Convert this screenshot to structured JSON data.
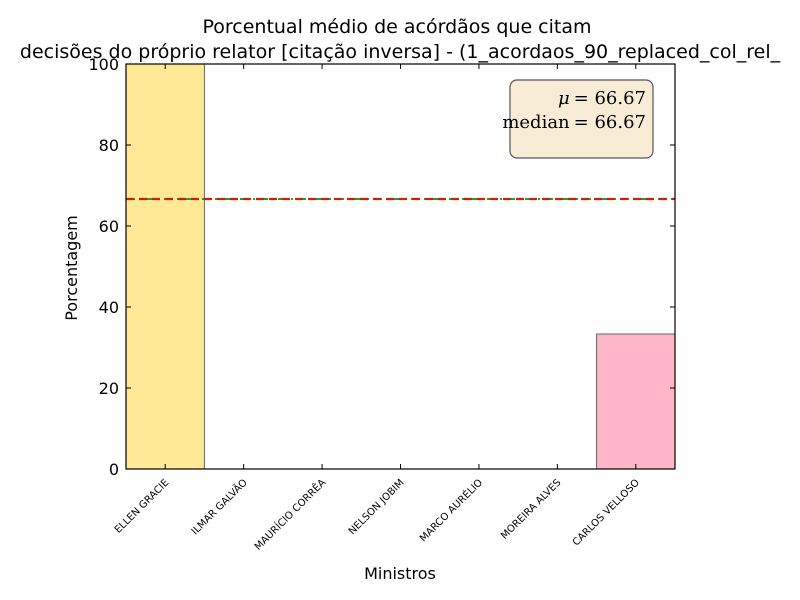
{
  "chart_data": {
    "type": "bar",
    "title_line1": "Porcentual médio de acórdãos que citam",
    "title_line2": "decisões do próprio relator [citação inversa] - (1_acordaos_90_replaced_col_rel_",
    "xlabel": "Ministros",
    "ylabel": "Porcentagem",
    "categories": [
      "ELLEN GRACIE",
      "ILMAR GALVÃO",
      "MAURÍCIO CORRÊA",
      "NELSON JOBIM",
      "MARCO AURÉLIO",
      "MOREIRA ALVES",
      "CARLOS VELLOSO"
    ],
    "values": [
      100,
      0,
      0,
      0,
      0,
      0,
      33.33
    ],
    "bar_colors": [
      "#ffe896",
      "#ffe896",
      "#ffe896",
      "#ffe896",
      "#ffe896",
      "#ffe896",
      "#ffb6c6"
    ],
    "ylim": [
      0,
      100
    ],
    "yticks": [
      0,
      20,
      40,
      60,
      80,
      100
    ],
    "mean": 66.67,
    "median": 66.67,
    "mean_color": "#1f9e3f",
    "median_color": "#cc2200",
    "stats_box": {
      "mean_symbol": "μ",
      "mean_text": "= 66.67",
      "median_word": "median",
      "median_text": "= 66.67",
      "background": "#f8ecd6"
    },
    "grid": false
  }
}
